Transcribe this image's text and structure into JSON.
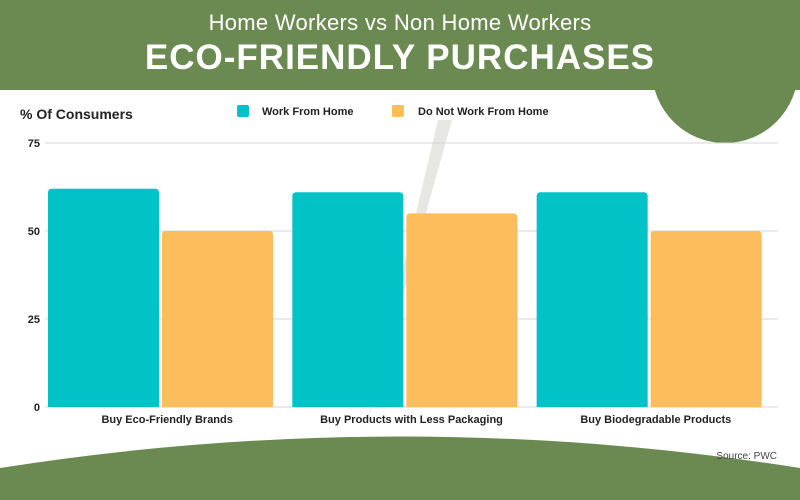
{
  "header": {
    "subtitle": "Home Workers vs Non Home Workers",
    "title": "ECO-FRIENDLY PURCHASES"
  },
  "source": "Source: PWC",
  "colors": {
    "header_bg": "#6b8a51",
    "series_1": "#00c2c7",
    "series_2": "#fdbd5d",
    "grid": "#d4d4d4"
  },
  "chart_data": {
    "type": "bar",
    "ylabel": "% Of Consumers",
    "categories": [
      "Buy Eco-Friendly Brands",
      "Buy Products with Less Packaging",
      "Buy Biodegradable Products"
    ],
    "series": [
      {
        "name": "Work From Home",
        "values": [
          62,
          61,
          61
        ]
      },
      {
        "name": "Do Not Work From Home",
        "values": [
          50,
          55,
          50
        ]
      }
    ],
    "ylim": [
      0,
      75
    ],
    "yticks": [
      0,
      25,
      50,
      75
    ],
    "grid": true,
    "legend_position": "top"
  }
}
